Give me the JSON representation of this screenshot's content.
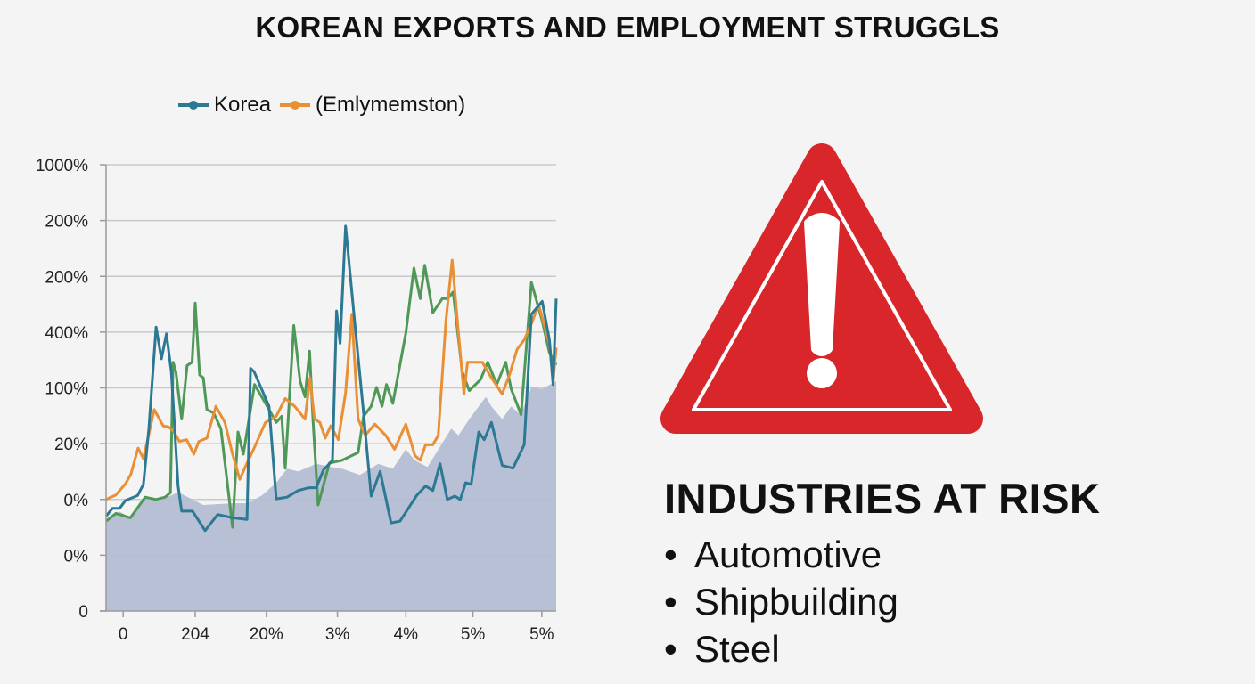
{
  "title": "KOREAN EXPORTS AND EMPLOYMENT STRUGGLS",
  "chart_data": {
    "type": "line",
    "title": "KOREAN EXPORTS AND EMPLOYMENT STRUGGLS",
    "xlabel": "",
    "ylabel": "",
    "legend_position": "top-left",
    "grid": true,
    "xlim": [
      0,
      100
    ],
    "ylim": [
      0,
      8
    ],
    "x_ticks": [
      {
        "value": 3.8,
        "label": "0"
      },
      {
        "value": 19.8,
        "label": "204"
      },
      {
        "value": 35.6,
        "label": "20%"
      },
      {
        "value": 51.4,
        "label": "3%"
      },
      {
        "value": 66.6,
        "label": "4%"
      },
      {
        "value": 81.5,
        "label": "5%"
      },
      {
        "value": 96.8,
        "label": "5%"
      }
    ],
    "y_ticks": [
      {
        "value": 0,
        "label": "0"
      },
      {
        "value": 1,
        "label": "0%"
      },
      {
        "value": 2,
        "label": "0%"
      },
      {
        "value": 3,
        "label": "20%"
      },
      {
        "value": 4,
        "label": "100%"
      },
      {
        "value": 5,
        "label": "400%"
      },
      {
        "value": 6,
        "label": "200%"
      },
      {
        "value": 7,
        "label": "200%"
      },
      {
        "value": 8,
        "label": "1000%"
      }
    ],
    "series": [
      {
        "name": "",
        "kind": "area",
        "color": "#b3bdd3",
        "points": [
          [
            0,
            1.61
          ],
          [
            3,
            1.78
          ],
          [
            5.4,
            1.67
          ],
          [
            8.7,
            2.04
          ],
          [
            11.9,
            1.98
          ],
          [
            16,
            2.13
          ],
          [
            21.6,
            1.9
          ],
          [
            28.1,
            1.93
          ],
          [
            31.3,
            1.93
          ],
          [
            34.6,
            2.07
          ],
          [
            37.8,
            2.3
          ],
          [
            40.2,
            2.55
          ],
          [
            42.7,
            2.5
          ],
          [
            46.7,
            2.64
          ],
          [
            50,
            2.58
          ],
          [
            52.4,
            2.55
          ],
          [
            56.4,
            2.44
          ],
          [
            60.5,
            2.64
          ],
          [
            63.7,
            2.55
          ],
          [
            66.6,
            2.9
          ],
          [
            68.6,
            2.7
          ],
          [
            71.4,
            2.58
          ],
          [
            76.7,
            3.27
          ],
          [
            78.3,
            3.15
          ],
          [
            80.7,
            3.44
          ],
          [
            84.4,
            3.84
          ],
          [
            85.6,
            3.67
          ],
          [
            88,
            3.44
          ],
          [
            90,
            3.67
          ],
          [
            92.1,
            3.52
          ],
          [
            94.5,
            4.01
          ],
          [
            96.9,
            3.98
          ],
          [
            100,
            4.12
          ]
        ]
      },
      {
        "name": "",
        "kind": "line",
        "color": "#4f9858",
        "points": [
          [
            0,
            1.61
          ],
          [
            2.2,
            1.75
          ],
          [
            5.4,
            1.67
          ],
          [
            8.7,
            2.04
          ],
          [
            11.1,
            2.0
          ],
          [
            13.1,
            2.04
          ],
          [
            14.3,
            2.12
          ],
          [
            14.9,
            4.46
          ],
          [
            15.5,
            4.29
          ],
          [
            16.8,
            3.44
          ],
          [
            18,
            4.4
          ],
          [
            19.1,
            4.46
          ],
          [
            19.8,
            5.52
          ],
          [
            20.8,
            4.23
          ],
          [
            21.6,
            4.18
          ],
          [
            22.4,
            3.61
          ],
          [
            23.9,
            3.55
          ],
          [
            25.5,
            3.27
          ],
          [
            28.1,
            1.5
          ],
          [
            29.3,
            3.21
          ],
          [
            30.5,
            2.81
          ],
          [
            33,
            4.06
          ],
          [
            35.8,
            3.67
          ],
          [
            37.8,
            3.38
          ],
          [
            39,
            3.49
          ],
          [
            39.8,
            2.56
          ],
          [
            41.7,
            5.12
          ],
          [
            43.1,
            4.12
          ],
          [
            44.2,
            3.84
          ],
          [
            45.2,
            4.66
          ],
          [
            46,
            3.38
          ],
          [
            47.1,
            1.9
          ],
          [
            49.6,
            2.65
          ],
          [
            52.4,
            2.7
          ],
          [
            56,
            2.84
          ],
          [
            57.2,
            3.49
          ],
          [
            58.9,
            3.67
          ],
          [
            60.1,
            4.01
          ],
          [
            61.3,
            3.67
          ],
          [
            62.3,
            4.06
          ],
          [
            63.7,
            3.72
          ],
          [
            66.6,
            4.98
          ],
          [
            68.4,
            6.15
          ],
          [
            69.8,
            5.6
          ],
          [
            70.8,
            6.2
          ],
          [
            72.6,
            5.35
          ],
          [
            74.7,
            5.6
          ],
          [
            75.9,
            5.6
          ],
          [
            77.1,
            5.72
          ],
          [
            79.1,
            4.29
          ],
          [
            80.7,
            3.95
          ],
          [
            83.2,
            4.15
          ],
          [
            84.8,
            4.46
          ],
          [
            86.8,
            4.06
          ],
          [
            88.8,
            4.46
          ],
          [
            90,
            3.98
          ],
          [
            92.2,
            3.52
          ],
          [
            94.5,
            5.89
          ],
          [
            96.9,
            5.2
          ],
          [
            98.5,
            4.63
          ],
          [
            100,
            4.41
          ]
        ]
      },
      {
        "name": "(Emlymemston)",
        "kind": "line",
        "color": "#e98f35",
        "points": [
          [
            0,
            2.0
          ],
          [
            2.2,
            2.08
          ],
          [
            4.3,
            2.28
          ],
          [
            5.5,
            2.45
          ],
          [
            7.1,
            2.92
          ],
          [
            8.3,
            2.73
          ],
          [
            10.7,
            3.61
          ],
          [
            12.7,
            3.32
          ],
          [
            13.9,
            3.3
          ],
          [
            15.1,
            3.21
          ],
          [
            16.3,
            3.04
          ],
          [
            17.9,
            3.07
          ],
          [
            19.5,
            2.81
          ],
          [
            20.6,
            3.04
          ],
          [
            22.4,
            3.1
          ],
          [
            24.4,
            3.67
          ],
          [
            26.4,
            3.38
          ],
          [
            28.1,
            2.81
          ],
          [
            29.7,
            2.36
          ],
          [
            31.3,
            2.65
          ],
          [
            32.9,
            2.92
          ],
          [
            35.4,
            3.38
          ],
          [
            37.8,
            3.49
          ],
          [
            39.8,
            3.81
          ],
          [
            41.9,
            3.67
          ],
          [
            44.2,
            3.44
          ],
          [
            45.3,
            4.18
          ],
          [
            46.3,
            3.44
          ],
          [
            47.5,
            3.38
          ],
          [
            48.7,
            3.1
          ],
          [
            49.9,
            3.32
          ],
          [
            51.6,
            3.07
          ],
          [
            53.2,
            3.91
          ],
          [
            54.6,
            5.32
          ],
          [
            56,
            3.44
          ],
          [
            57.6,
            3.15
          ],
          [
            59.7,
            3.35
          ],
          [
            62.1,
            3.15
          ],
          [
            64.1,
            2.9
          ],
          [
            66.6,
            3.35
          ],
          [
            68.6,
            2.79
          ],
          [
            69.8,
            2.7
          ],
          [
            71,
            2.98
          ],
          [
            72.6,
            2.98
          ],
          [
            73.8,
            3.15
          ],
          [
            75.5,
            5.2
          ],
          [
            76.9,
            6.29
          ],
          [
            78.3,
            4.98
          ],
          [
            79.5,
            3.89
          ],
          [
            80.3,
            4.46
          ],
          [
            81.5,
            4.46
          ],
          [
            83.6,
            4.46
          ],
          [
            85.6,
            4.18
          ],
          [
            86.8,
            4.04
          ],
          [
            88,
            3.89
          ],
          [
            89.6,
            4.23
          ],
          [
            91.3,
            4.69
          ],
          [
            92.9,
            4.86
          ],
          [
            94.5,
            5.15
          ],
          [
            96.1,
            5.49
          ],
          [
            98.5,
            4.8
          ],
          [
            99.3,
            4.12
          ],
          [
            100,
            4.72
          ]
        ]
      },
      {
        "name": "Korea",
        "kind": "line",
        "color": "#2d7893",
        "points": [
          [
            0,
            1.7
          ],
          [
            1.4,
            1.84
          ],
          [
            3,
            1.84
          ],
          [
            4.3,
            1.98
          ],
          [
            7,
            2.07
          ],
          [
            8.3,
            2.27
          ],
          [
            9.5,
            3.27
          ],
          [
            11.1,
            5.09
          ],
          [
            12.3,
            4.52
          ],
          [
            13.4,
            4.97
          ],
          [
            14.5,
            4.29
          ],
          [
            16,
            2.24
          ],
          [
            16.8,
            1.79
          ],
          [
            19.2,
            1.79
          ],
          [
            22,
            1.44
          ],
          [
            24.8,
            1.73
          ],
          [
            28.1,
            1.67
          ],
          [
            31.3,
            1.64
          ],
          [
            32.1,
            4.35
          ],
          [
            32.9,
            4.29
          ],
          [
            36.2,
            3.67
          ],
          [
            37.8,
            2.01
          ],
          [
            40.2,
            2.04
          ],
          [
            42.7,
            2.16
          ],
          [
            45.1,
            2.21
          ],
          [
            46.7,
            2.21
          ],
          [
            48.3,
            2.53
          ],
          [
            50.3,
            2.7
          ],
          [
            51.2,
            5.38
          ],
          [
            52,
            4.8
          ],
          [
            53.2,
            6.9
          ],
          [
            55.2,
            5.2
          ],
          [
            57.2,
            3.55
          ],
          [
            58.9,
            2.06
          ],
          [
            60.9,
            2.5
          ],
          [
            63.3,
            1.58
          ],
          [
            65.3,
            1.61
          ],
          [
            69,
            2.07
          ],
          [
            71,
            2.24
          ],
          [
            72.6,
            2.16
          ],
          [
            74.2,
            2.64
          ],
          [
            75.8,
            2.0
          ],
          [
            77.5,
            2.06
          ],
          [
            78.7,
            2.0
          ],
          [
            79.9,
            2.3
          ],
          [
            81.1,
            2.27
          ],
          [
            82.8,
            3.21
          ],
          [
            84,
            3.07
          ],
          [
            85.6,
            3.38
          ],
          [
            88,
            2.61
          ],
          [
            90.4,
            2.56
          ],
          [
            92.9,
            2.98
          ],
          [
            94.5,
            5.32
          ],
          [
            96.9,
            5.55
          ],
          [
            98.5,
            4.86
          ],
          [
            99.3,
            4.06
          ],
          [
            100,
            5.6
          ]
        ]
      }
    ]
  },
  "legend": [
    {
      "label": "Korea",
      "color": "#2d7893"
    },
    {
      "label": "(Emlymemston)",
      "color": "#e98f35"
    }
  ],
  "warning": {
    "icon": "warning-triangle-icon",
    "color": "#d8262a"
  },
  "risk": {
    "title": "INDUSTRIES AT RISK",
    "items": [
      "Automotive",
      "Shipbuilding",
      "Steel"
    ]
  }
}
